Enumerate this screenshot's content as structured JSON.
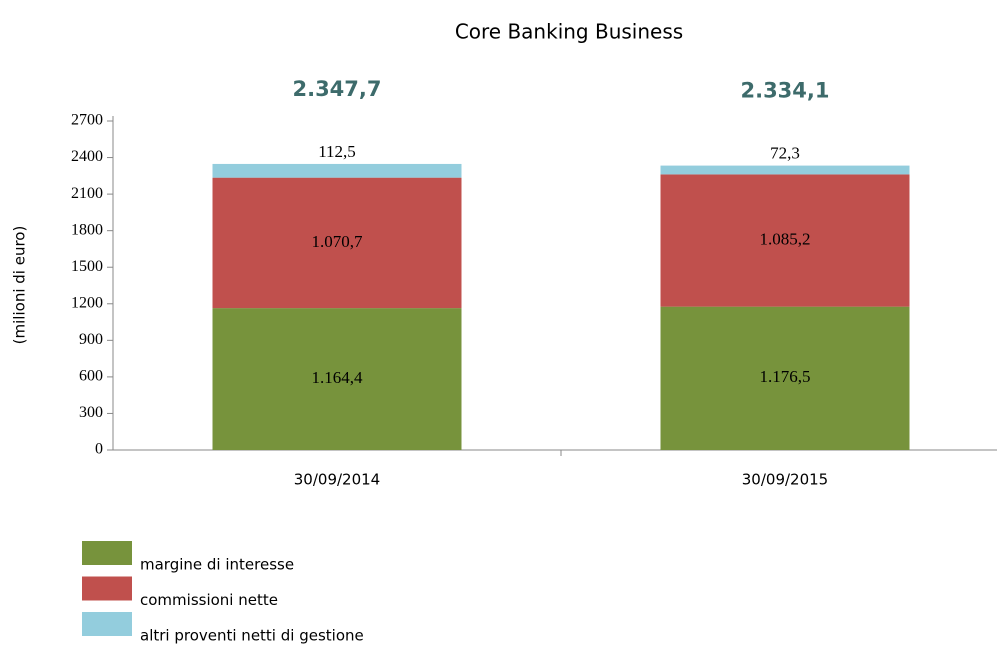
{
  "chart_data": {
    "type": "stacked_bar",
    "title": "Core Banking Business",
    "ylabel": "(milioni di euro)",
    "categories": [
      "30/09/2014",
      "30/09/2015"
    ],
    "series": [
      {
        "name": "margine di interesse",
        "color": "#77933c",
        "values": [
          1164.4,
          1176.5
        ],
        "value_labels": [
          "1.164,4",
          "1.176,5"
        ]
      },
      {
        "name": "commissioni nette",
        "color": "#c0504d",
        "values": [
          1070.7,
          1085.2
        ],
        "value_labels": [
          "1.070,7",
          "1.085,2"
        ]
      },
      {
        "name": "altri proventi netti di gestione",
        "color": "#93cddd",
        "values": [
          112.5,
          72.3
        ],
        "value_labels": [
          "112,5",
          "72,3"
        ]
      }
    ],
    "totals": [
      2347.7,
      2334.1
    ],
    "total_labels": [
      "2.347,7",
      "2.334,1"
    ],
    "ylim": [
      0,
      2700
    ],
    "yticks": [
      0,
      300,
      600,
      900,
      1200,
      1500,
      1800,
      2100,
      2400,
      2700
    ]
  }
}
